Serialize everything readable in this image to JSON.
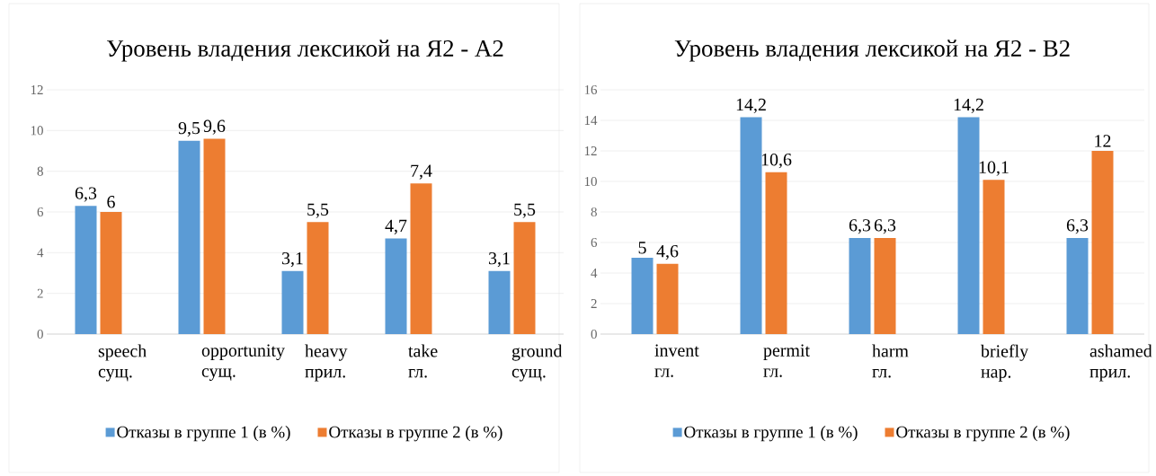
{
  "chart_data": [
    {
      "type": "bar",
      "title": "Уровень владения лексикой на Я2 - А2",
      "categories": [
        "speech сущ.",
        "opportunity сущ.",
        "heavy прил.",
        "take гл.",
        "ground сущ."
      ],
      "series": [
        {
          "name": "Отказы в группе 1 (в %)",
          "color": "#5b9bd5",
          "values": [
            6.3,
            9.5,
            3.1,
            4.7,
            3.1
          ],
          "value_labels": [
            "6,3",
            "9,5",
            "3,1",
            "4,7",
            "3,1"
          ]
        },
        {
          "name": "Отказы в группе 2 (в %)",
          "color": "#ed7d31",
          "values": [
            6,
            9.6,
            5.5,
            7.4,
            5.5
          ],
          "value_labels": [
            "6",
            "9,6",
            "5,5",
            "7,4",
            "5,5"
          ]
        }
      ],
      "ylim": [
        0,
        12
      ],
      "yticks": [
        0,
        2,
        4,
        6,
        8,
        10,
        12
      ],
      "grid": "y",
      "legend": "bottom"
    },
    {
      "type": "bar",
      "title": "Уровень владения лексикой на Я2 - В2",
      "categories": [
        "invent гл.",
        "permit гл.",
        "harm гл.",
        "briefly нар.",
        "ashamed прил."
      ],
      "series": [
        {
          "name": "Отказы в группе 1 (в %)",
          "color": "#5b9bd5",
          "values": [
            5,
            14.2,
            6.3,
            14.2,
            6.3
          ],
          "value_labels": [
            "5",
            "14,2",
            "6,3",
            "14,2",
            "6,3"
          ]
        },
        {
          "name": "Отказы в группе 2 (в %)",
          "color": "#ed7d31",
          "values": [
            4.6,
            10.6,
            6.3,
            10.1,
            12
          ],
          "value_labels": [
            "4,6",
            "10,6",
            "6,3",
            "10,1",
            "12"
          ]
        }
      ],
      "ylim": [
        0,
        16
      ],
      "yticks": [
        0,
        2,
        4,
        6,
        8,
        10,
        12,
        14,
        16
      ],
      "grid": "y",
      "legend": "bottom"
    }
  ]
}
